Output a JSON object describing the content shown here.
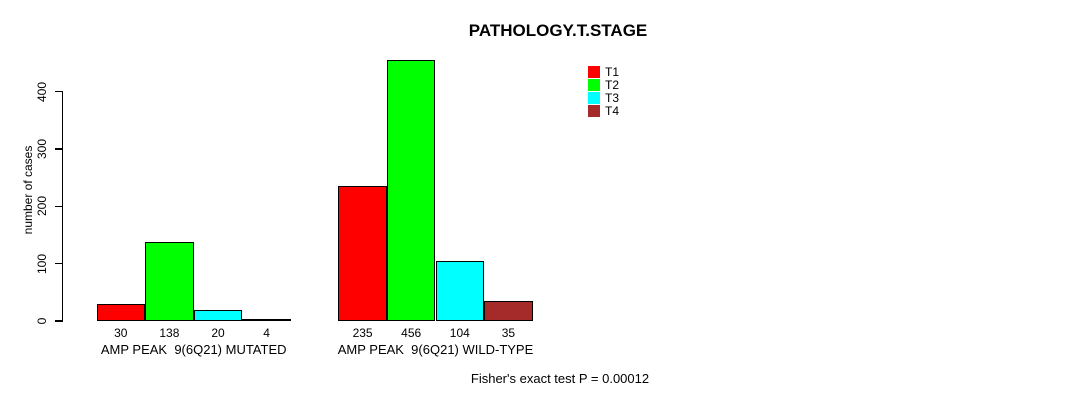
{
  "chart_data": {
    "type": "bar",
    "title": "PATHOLOGY.T.STAGE",
    "ylabel": "number of cases",
    "xlabel": "",
    "categories": [
      "AMP PEAK  9(6Q21) MUTATED",
      "AMP PEAK  9(6Q21) WILD-TYPE"
    ],
    "series": [
      {
        "name": "T1",
        "color": "#FF0000",
        "values": [
          30,
          235
        ]
      },
      {
        "name": "T2",
        "color": "#00FF00",
        "values": [
          138,
          456
        ]
      },
      {
        "name": "T3",
        "color": "#00FFFF",
        "values": [
          20,
          104
        ]
      },
      {
        "name": "T4",
        "color": "#A52A2A",
        "values": [
          4,
          35
        ]
      }
    ],
    "bar_value_labels_shown": true,
    "yticks": [
      0,
      100,
      200,
      300,
      400
    ],
    "ylim": [
      0,
      460
    ],
    "grid": false,
    "legend_position": "top-right",
    "annotation": "Fisher's exact test P = 0.00012"
  }
}
